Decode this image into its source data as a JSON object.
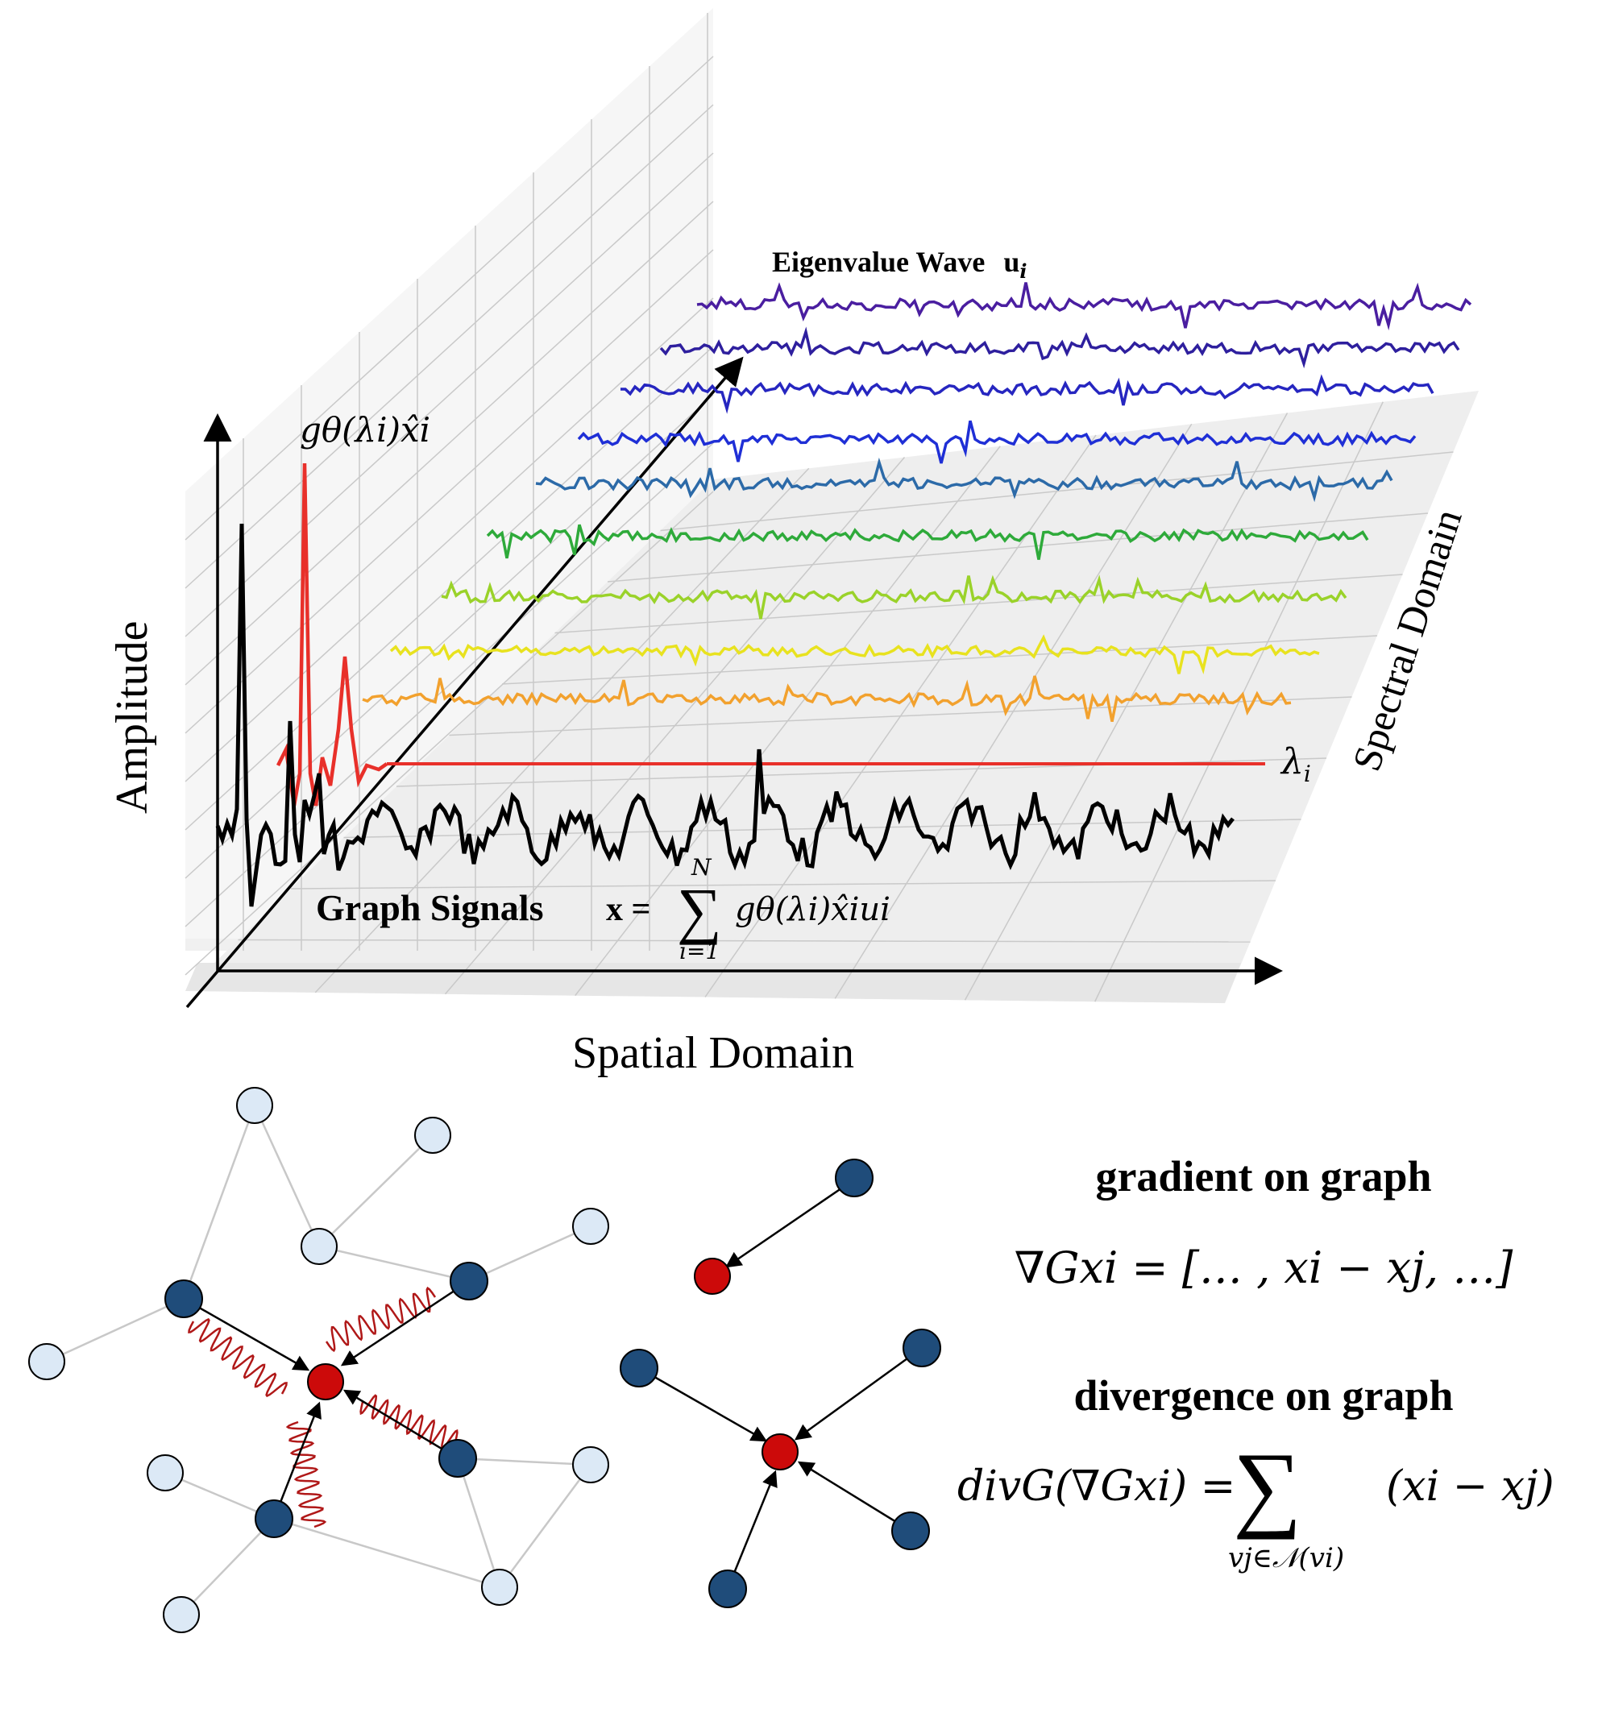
{
  "labels": {
    "amplitude": "Amplitude",
    "spatial_domain": "Spatial Domain",
    "spectral_domain": "Spectral Domain",
    "eigen_text": "Eigenvalue Wave",
    "eigen_symbol": "u",
    "eigen_sub": "i",
    "filter_formula": "gθ(λi)x̂i",
    "lambda": "λ",
    "lambda_sub": "i",
    "graph_signals": "Graph Signals",
    "graph_formula_lhs": "x =",
    "sum_top": "N",
    "sum_bottom": "i=1",
    "graph_formula_rhs": "gθ(λi)x̂iui",
    "gradient_title": "gradient on graph",
    "gradient_formula": "∇Gxi = [… , xi − xj, …]",
    "divergence_title": "divergence on graph",
    "divergence_lhs": "divG(∇Gxi) =",
    "divergence_rhs": "(xi − xj)",
    "divergence_sub": "vj∈𝒩(vi)"
  },
  "colors": {
    "spatial_signal": "#000000",
    "filtered": "#e8302a",
    "baseline": "#e8302a",
    "wave_colors": [
      "#f2a12e",
      "#e8e21f",
      "#9ad22a",
      "#2eaa3a",
      "#2c6aa8",
      "#1f2fd6",
      "#2626c0",
      "#2e1f9e",
      "#4a1ea0"
    ],
    "node_dark": "#1f4c7a",
    "node_light": "#dce9f6",
    "node_red": "#cc0a0a",
    "edge_light": "#c8c8c8",
    "wiggle": "#b01818"
  }
}
